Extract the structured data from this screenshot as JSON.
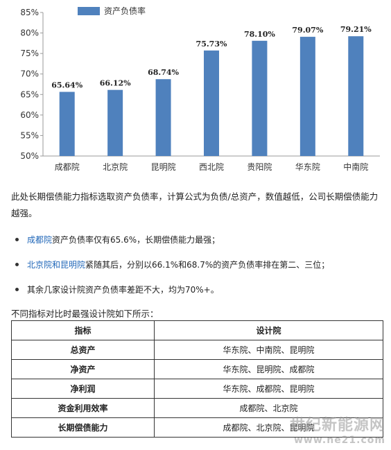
{
  "chart_data": {
    "type": "bar",
    "categories": [
      "成都院",
      "北京院",
      "昆明院",
      "西北院",
      "贵阳院",
      "华东院",
      "中南院"
    ],
    "values": [
      65.64,
      66.12,
      68.74,
      75.73,
      78.1,
      79.07,
      79.21
    ],
    "value_labels": [
      "65.64%",
      "66.12%",
      "68.74%",
      "75.73%",
      "78.10%",
      "79.07%",
      "79.21%"
    ],
    "legend": "资产负债率",
    "ylim": [
      50,
      85
    ],
    "yticks": [
      50,
      55,
      60,
      65,
      70,
      75,
      80,
      85
    ],
    "ytick_labels": [
      "50%",
      "55%",
      "60%",
      "65%",
      "70%",
      "75%",
      "80%",
      "85%"
    ],
    "bar_color": "#4f81bd",
    "legend_placement": "top-left",
    "grid": false
  },
  "text": {
    "para1": "此处长期偿债能力指标选取资产负债率，计算公式为负债/总资产，数值越低，公司长期偿债能力越强。",
    "bullet1_link": "成都院",
    "bullet1_rest": "资产负债率仅有65.6%，长期偿债能力最强；",
    "bullet2_link": "北京院和昆明院",
    "bullet2_rest": "紧随其后，分别以66.1%和68.7%的资产负债率排在第二、三位；",
    "bullet3": "其余几家设计院资产负债率差距不大，均为70%+。",
    "intro": "不同指标对比时最强设计院如下所示："
  },
  "table": {
    "headers": [
      "指标",
      "设计院"
    ],
    "rows": [
      {
        "indicator": "总资产",
        "institutes": "华东院、中南院、昆明院"
      },
      {
        "indicator": "净资产",
        "institutes": "华东院、昆明院、成都院"
      },
      {
        "indicator": "净利润",
        "institutes": "华东院、成都院、昆明院"
      },
      {
        "indicator": "资金利用效率",
        "institutes": "成都院、北京院"
      },
      {
        "indicator": "长期偿债能力",
        "institutes": "成都院、北京院、昆明院"
      }
    ]
  },
  "watermark": {
    "line1": "世纪新能源网",
    "line2": "www.ne21.com"
  }
}
